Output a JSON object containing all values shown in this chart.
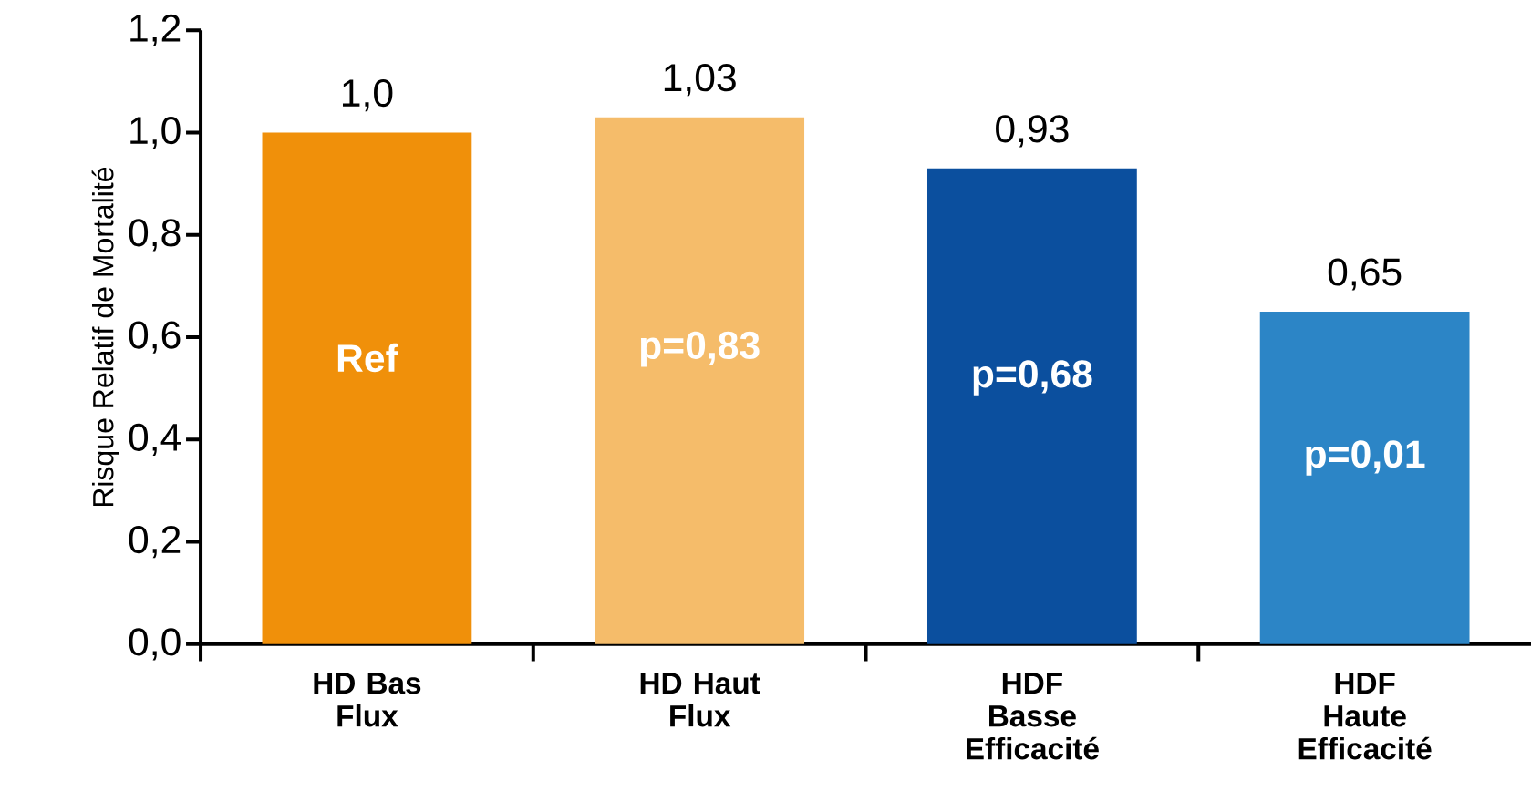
{
  "chart_data": {
    "type": "bar",
    "ylabel": "Risque Relatif de Mortalité",
    "categories": [
      "HD Bas Flux",
      "HD Haut Flux",
      "HDF Basse Efficacité",
      "HDF Haute Efficacité"
    ],
    "values": [
      1.0,
      1.03,
      0.93,
      0.65
    ],
    "value_labels": [
      "1,0",
      "1,03",
      "0,93",
      "0,65"
    ],
    "colors": [
      "#f0900a",
      "#f5bc6a",
      "#0b4f9e",
      "#2c85c6"
    ],
    "ylim": [
      0,
      1.2
    ],
    "yticks": [
      {
        "value": 0,
        "label": "0,0"
      },
      {
        "value": 0.2,
        "label": "0,2"
      },
      {
        "value": 0.4,
        "label": "0,4"
      },
      {
        "value": 0.6,
        "label": "0,6"
      },
      {
        "value": 0.8,
        "label": "0,8"
      },
      {
        "value": 1.0,
        "label": "1,0"
      },
      {
        "value": 1.2,
        "label": "1,2"
      }
    ],
    "annotations": [
      "Ref",
      "p=0,83",
      "p=0,68",
      "p=0,01"
    ]
  }
}
